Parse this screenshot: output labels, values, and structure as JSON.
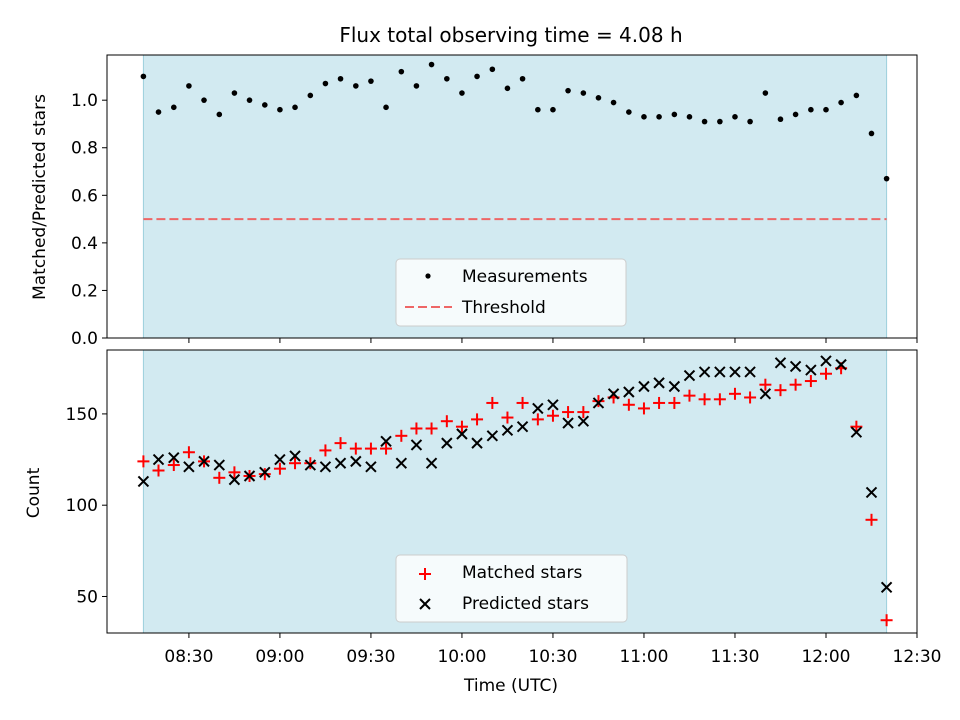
{
  "chart_data": [
    {
      "type": "scatter",
      "title": "Flux total observing time = 4.08 h",
      "ylabel": "Matched/Predicted stars",
      "ylim": [
        0.0,
        1.19
      ],
      "yticks": [
        0.0,
        0.2,
        0.4,
        0.6,
        0.8,
        1.0
      ],
      "ytick_labels": [
        "0.0",
        "0.2",
        "0.4",
        "0.6",
        "0.8",
        "1.0"
      ],
      "shaded_span_hours": [
        8.25,
        12.333
      ],
      "threshold": 0.5,
      "legend": {
        "position": "lower center",
        "entries": [
          "Measurements",
          "Threshold"
        ]
      },
      "series": [
        {
          "name": "Measurements",
          "color": "#000000",
          "x_hours": [
            8.25,
            8.333,
            8.417,
            8.5,
            8.583,
            8.667,
            8.75,
            8.833,
            8.917,
            9.0,
            9.083,
            9.167,
            9.25,
            9.333,
            9.417,
            9.5,
            9.583,
            9.667,
            9.75,
            9.833,
            9.917,
            10.0,
            10.083,
            10.167,
            10.25,
            10.333,
            10.417,
            10.5,
            10.583,
            10.667,
            10.75,
            10.833,
            10.917,
            11.0,
            11.083,
            11.167,
            11.25,
            11.333,
            11.417,
            11.5,
            11.583,
            11.667,
            11.75,
            11.833,
            11.917,
            12.0,
            12.083,
            12.167,
            12.25,
            12.333
          ],
          "values": [
            1.1,
            0.95,
            0.97,
            1.06,
            1.0,
            0.94,
            1.03,
            1.0,
            0.98,
            0.96,
            0.97,
            1.02,
            1.07,
            1.09,
            1.06,
            1.08,
            0.97,
            1.12,
            1.06,
            1.15,
            1.09,
            1.03,
            1.1,
            1.13,
            1.05,
            1.09,
            0.96,
            0.96,
            1.04,
            1.03,
            1.01,
            0.99,
            0.95,
            0.93,
            0.93,
            0.94,
            0.93,
            0.91,
            0.91,
            0.93,
            0.91,
            1.03,
            0.92,
            0.94,
            0.96,
            0.96,
            0.99,
            1.02,
            0.86,
            0.67
          ]
        },
        {
          "name": "Threshold",
          "color": "#ee6666",
          "value": 0.5
        }
      ]
    },
    {
      "type": "scatter",
      "xlabel": "Time (UTC)",
      "ylabel": "Count",
      "xlim_hours": [
        8.05,
        12.5
      ],
      "ylim": [
        30,
        185
      ],
      "xticks_hours": [
        8.5,
        9.0,
        9.5,
        10.0,
        10.5,
        11.0,
        11.5,
        12.0,
        12.5
      ],
      "xtick_labels": [
        "08:30",
        "09:00",
        "09:30",
        "10:00",
        "10:30",
        "11:00",
        "11:30",
        "12:00",
        "12:30"
      ],
      "yticks": [
        50,
        100,
        150
      ],
      "ytick_labels": [
        "50",
        "100",
        "150"
      ],
      "shaded_span_hours": [
        8.25,
        12.333
      ],
      "legend": {
        "position": "lower center",
        "entries": [
          "Matched stars",
          "Predicted stars"
        ]
      },
      "series": [
        {
          "name": "Matched stars",
          "marker": "+",
          "color": "#ff0000",
          "x_hours": [
            8.25,
            8.333,
            8.417,
            8.5,
            8.583,
            8.667,
            8.75,
            8.833,
            8.917,
            9.0,
            9.083,
            9.167,
            9.25,
            9.333,
            9.417,
            9.5,
            9.583,
            9.667,
            9.75,
            9.833,
            9.917,
            10.0,
            10.083,
            10.167,
            10.25,
            10.333,
            10.417,
            10.5,
            10.583,
            10.667,
            10.75,
            10.833,
            10.917,
            11.0,
            11.083,
            11.167,
            11.25,
            11.333,
            11.417,
            11.5,
            11.583,
            11.667,
            11.75,
            11.833,
            11.917,
            12.0,
            12.083,
            12.167,
            12.25,
            12.333
          ],
          "values": [
            124,
            119,
            122,
            129,
            124,
            115,
            118,
            116,
            117,
            120,
            123,
            123,
            130,
            134,
            131,
            131,
            131,
            138,
            142,
            142,
            146,
            143,
            147,
            156,
            148,
            156,
            147,
            149,
            151,
            151,
            157,
            159,
            155,
            153,
            156,
            156,
            160,
            158,
            158,
            161,
            159,
            166,
            163,
            166,
            168,
            172,
            175,
            143,
            92,
            37
          ]
        },
        {
          "name": "Predicted stars",
          "marker": "x",
          "color": "#000000",
          "x_hours": [
            8.25,
            8.333,
            8.417,
            8.5,
            8.583,
            8.667,
            8.75,
            8.833,
            8.917,
            9.0,
            9.083,
            9.167,
            9.25,
            9.333,
            9.417,
            9.5,
            9.583,
            9.667,
            9.75,
            9.833,
            9.917,
            10.0,
            10.083,
            10.167,
            10.25,
            10.333,
            10.417,
            10.5,
            10.583,
            10.667,
            10.75,
            10.833,
            10.917,
            11.0,
            11.083,
            11.167,
            11.25,
            11.333,
            11.417,
            11.5,
            11.583,
            11.667,
            11.75,
            11.833,
            11.917,
            12.0,
            12.083,
            12.167,
            12.25,
            12.333
          ],
          "values": [
            113,
            125,
            126,
            121,
            124,
            122,
            114,
            116,
            118,
            125,
            127,
            122,
            121,
            123,
            124,
            121,
            135,
            123,
            133,
            123,
            134,
            139,
            134,
            138,
            141,
            143,
            153,
            155,
            145,
            146,
            156,
            161,
            162,
            165,
            167,
            165,
            171,
            173,
            173,
            173,
            173,
            161,
            178,
            176,
            174,
            179,
            177,
            140,
            107,
            55
          ]
        }
      ]
    }
  ]
}
